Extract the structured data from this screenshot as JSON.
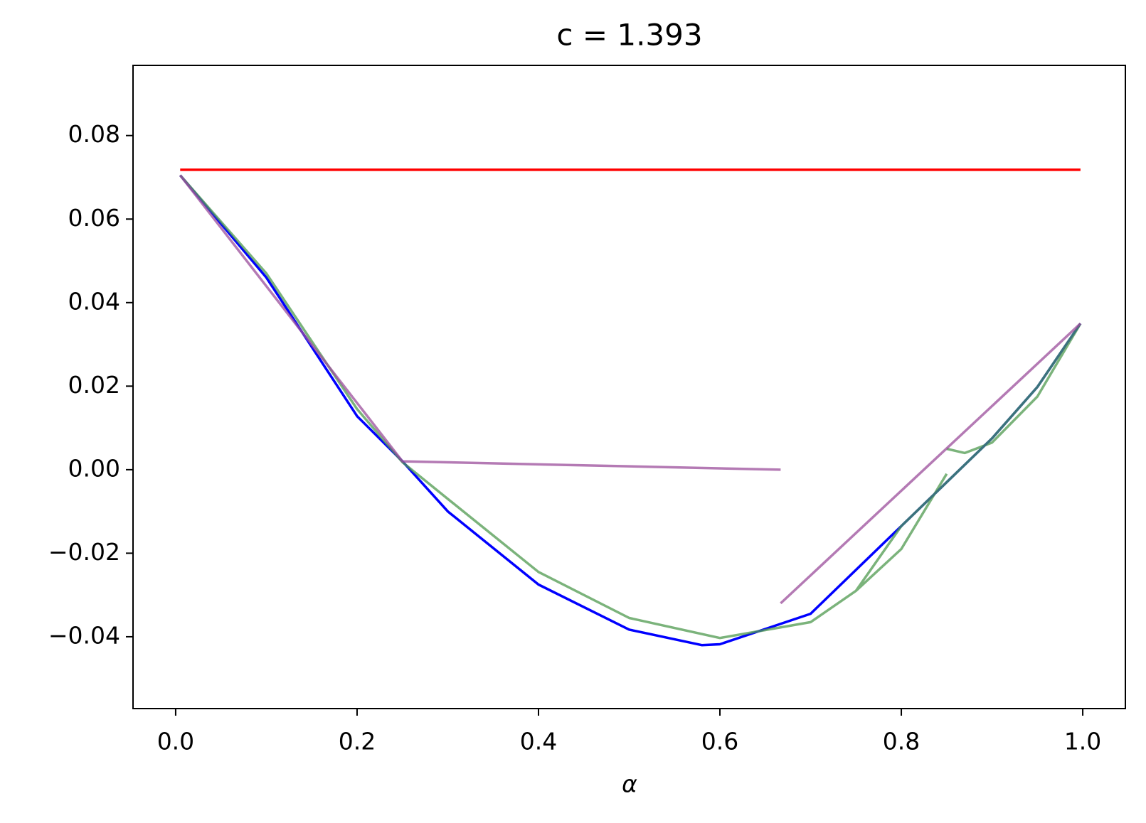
{
  "chart_data": {
    "type": "line",
    "title": "c = 1.393",
    "x_label": "α",
    "xlim": [
      -0.047,
      1.047
    ],
    "ylim": [
      -0.0572,
      0.0968
    ],
    "xticks": [
      {
        "value": 0,
        "label": "0.0"
      },
      {
        "value": 0.2,
        "label": "0.2"
      },
      {
        "value": 0.4,
        "label": "0.4"
      },
      {
        "value": 0.6,
        "label": "0.6"
      },
      {
        "value": 0.8,
        "label": "0.8"
      },
      {
        "value": 1,
        "label": "1.0"
      }
    ],
    "yticks": [
      {
        "value": -0.04,
        "label": "−0.04"
      },
      {
        "value": -0.02,
        "label": "−0.02"
      },
      {
        "value": 0,
        "label": "0.00"
      },
      {
        "value": 0.02,
        "label": "0.02"
      },
      {
        "value": 0.04,
        "label": "0.04"
      },
      {
        "value": 0.06,
        "label": "0.06"
      },
      {
        "value": 0.08,
        "label": "0.08"
      }
    ],
    "grid": false,
    "series": [
      {
        "color": "#ff0000",
        "x": [
          0.005,
          0.9975
        ],
        "values": [
          0.0718,
          0.0718
        ]
      },
      {
        "color": "#0000ff",
        "x": [
          0.005,
          0.1,
          0.2,
          0.25,
          0.3,
          0.4,
          0.5,
          0.58,
          0.6,
          0.7,
          0.8,
          0.9,
          0.95,
          0.9975
        ],
        "values": [
          0.0705,
          0.046,
          0.0128,
          0.002,
          -0.01,
          -0.0275,
          -0.0383,
          -0.042,
          -0.0418,
          -0.0345,
          -0.0135,
          0.0075,
          0.0198,
          0.035
        ]
      },
      {
        "color": "#4f9a4f",
        "x": [
          0.005,
          0.1,
          0.2,
          0.25,
          0.3,
          0.4,
          0.5,
          0.6,
          0.7,
          0.75,
          0.8,
          0.9,
          0.95,
          0.9975,
          null,
          0.75,
          0.8,
          0.85,
          null,
          0.85,
          0.87,
          0.9,
          0.95,
          0.9975
        ],
        "values": [
          0.0705,
          0.047,
          0.0145,
          0.0018,
          -0.007,
          -0.0245,
          -0.0355,
          -0.0403,
          -0.0365,
          -0.029,
          -0.0135,
          0.0075,
          0.0198,
          0.035,
          null,
          -0.029,
          -0.019,
          -0.001,
          null,
          0.005,
          0.004,
          0.0065,
          0.0175,
          0.035
        ]
      },
      {
        "color": "#9b4d9b",
        "x": [
          0.005,
          0.25,
          0.667,
          null,
          0.667,
          0.9975
        ],
        "values": [
          0.0705,
          0.002,
          0.0,
          null,
          -0.032,
          0.035
        ]
      }
    ]
  }
}
